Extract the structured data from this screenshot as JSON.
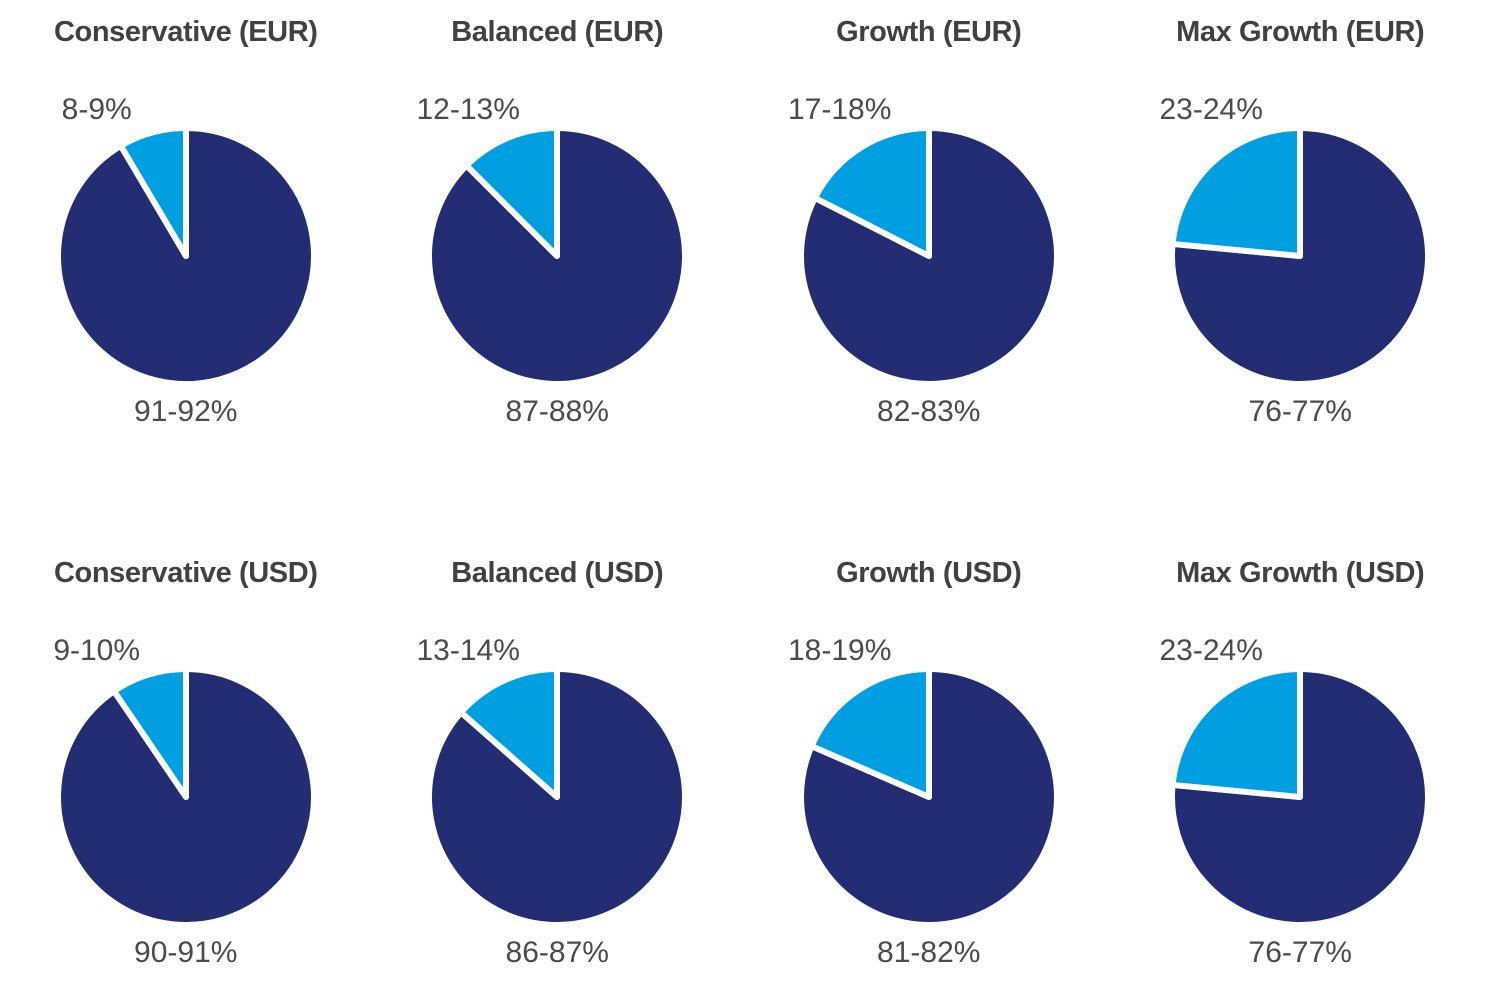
{
  "colors": {
    "navy": "#232D73",
    "cyan": "#009FE1",
    "slice_gap": "#FFFFFF",
    "title_text": "#414042",
    "label_text": "#4B4B4D",
    "background": "#FFFFFF"
  },
  "chart_data": [
    {
      "type": "pie",
      "title": "Conservative (EUR)",
      "start_angle_deg": 0,
      "direction": "clockwise",
      "legend": "none",
      "slices": [
        {
          "name": "primary",
          "label": "91-92%",
          "value": 91.5,
          "color": "navy"
        },
        {
          "name": "secondary",
          "label": "8-9%",
          "value": 8.5,
          "color": "cyan"
        }
      ]
    },
    {
      "type": "pie",
      "title": "Balanced (EUR)",
      "start_angle_deg": 0,
      "direction": "clockwise",
      "legend": "none",
      "slices": [
        {
          "name": "primary",
          "label": "87-88%",
          "value": 87.5,
          "color": "navy"
        },
        {
          "name": "secondary",
          "label": "12-13%",
          "value": 12.5,
          "color": "cyan"
        }
      ]
    },
    {
      "type": "pie",
      "title": "Growth (EUR)",
      "start_angle_deg": 0,
      "direction": "clockwise",
      "legend": "none",
      "slices": [
        {
          "name": "primary",
          "label": "82-83%",
          "value": 82.5,
          "color": "navy"
        },
        {
          "name": "secondary",
          "label": "17-18%",
          "value": 17.5,
          "color": "cyan"
        }
      ]
    },
    {
      "type": "pie",
      "title": "Max Growth (EUR)",
      "start_angle_deg": 0,
      "direction": "clockwise",
      "legend": "none",
      "slices": [
        {
          "name": "primary",
          "label": "76-77%",
          "value": 76.5,
          "color": "navy"
        },
        {
          "name": "secondary",
          "label": "23-24%",
          "value": 23.5,
          "color": "cyan"
        }
      ]
    },
    {
      "type": "pie",
      "title": "Conservative (USD)",
      "start_angle_deg": 0,
      "direction": "clockwise",
      "legend": "none",
      "slices": [
        {
          "name": "primary",
          "label": "90-91%",
          "value": 90.5,
          "color": "navy"
        },
        {
          "name": "secondary",
          "label": "9-10%",
          "value": 9.5,
          "color": "cyan"
        }
      ]
    },
    {
      "type": "pie",
      "title": "Balanced (USD)",
      "start_angle_deg": 0,
      "direction": "clockwise",
      "legend": "none",
      "slices": [
        {
          "name": "primary",
          "label": "86-87%",
          "value": 86.5,
          "color": "navy"
        },
        {
          "name": "secondary",
          "label": "13-14%",
          "value": 13.5,
          "color": "cyan"
        }
      ]
    },
    {
      "type": "pie",
      "title": "Growth (USD)",
      "start_angle_deg": 0,
      "direction": "clockwise",
      "legend": "none",
      "slices": [
        {
          "name": "primary",
          "label": "81-82%",
          "value": 81.5,
          "color": "navy"
        },
        {
          "name": "secondary",
          "label": "18-19%",
          "value": 18.5,
          "color": "cyan"
        }
      ]
    },
    {
      "type": "pie",
      "title": "Max Growth (USD)",
      "start_angle_deg": 0,
      "direction": "clockwise",
      "legend": "none",
      "slices": [
        {
          "name": "primary",
          "label": "76-77%",
          "value": 76.5,
          "color": "navy"
        },
        {
          "name": "secondary",
          "label": "23-24%",
          "value": 23.5,
          "color": "cyan"
        }
      ]
    }
  ]
}
